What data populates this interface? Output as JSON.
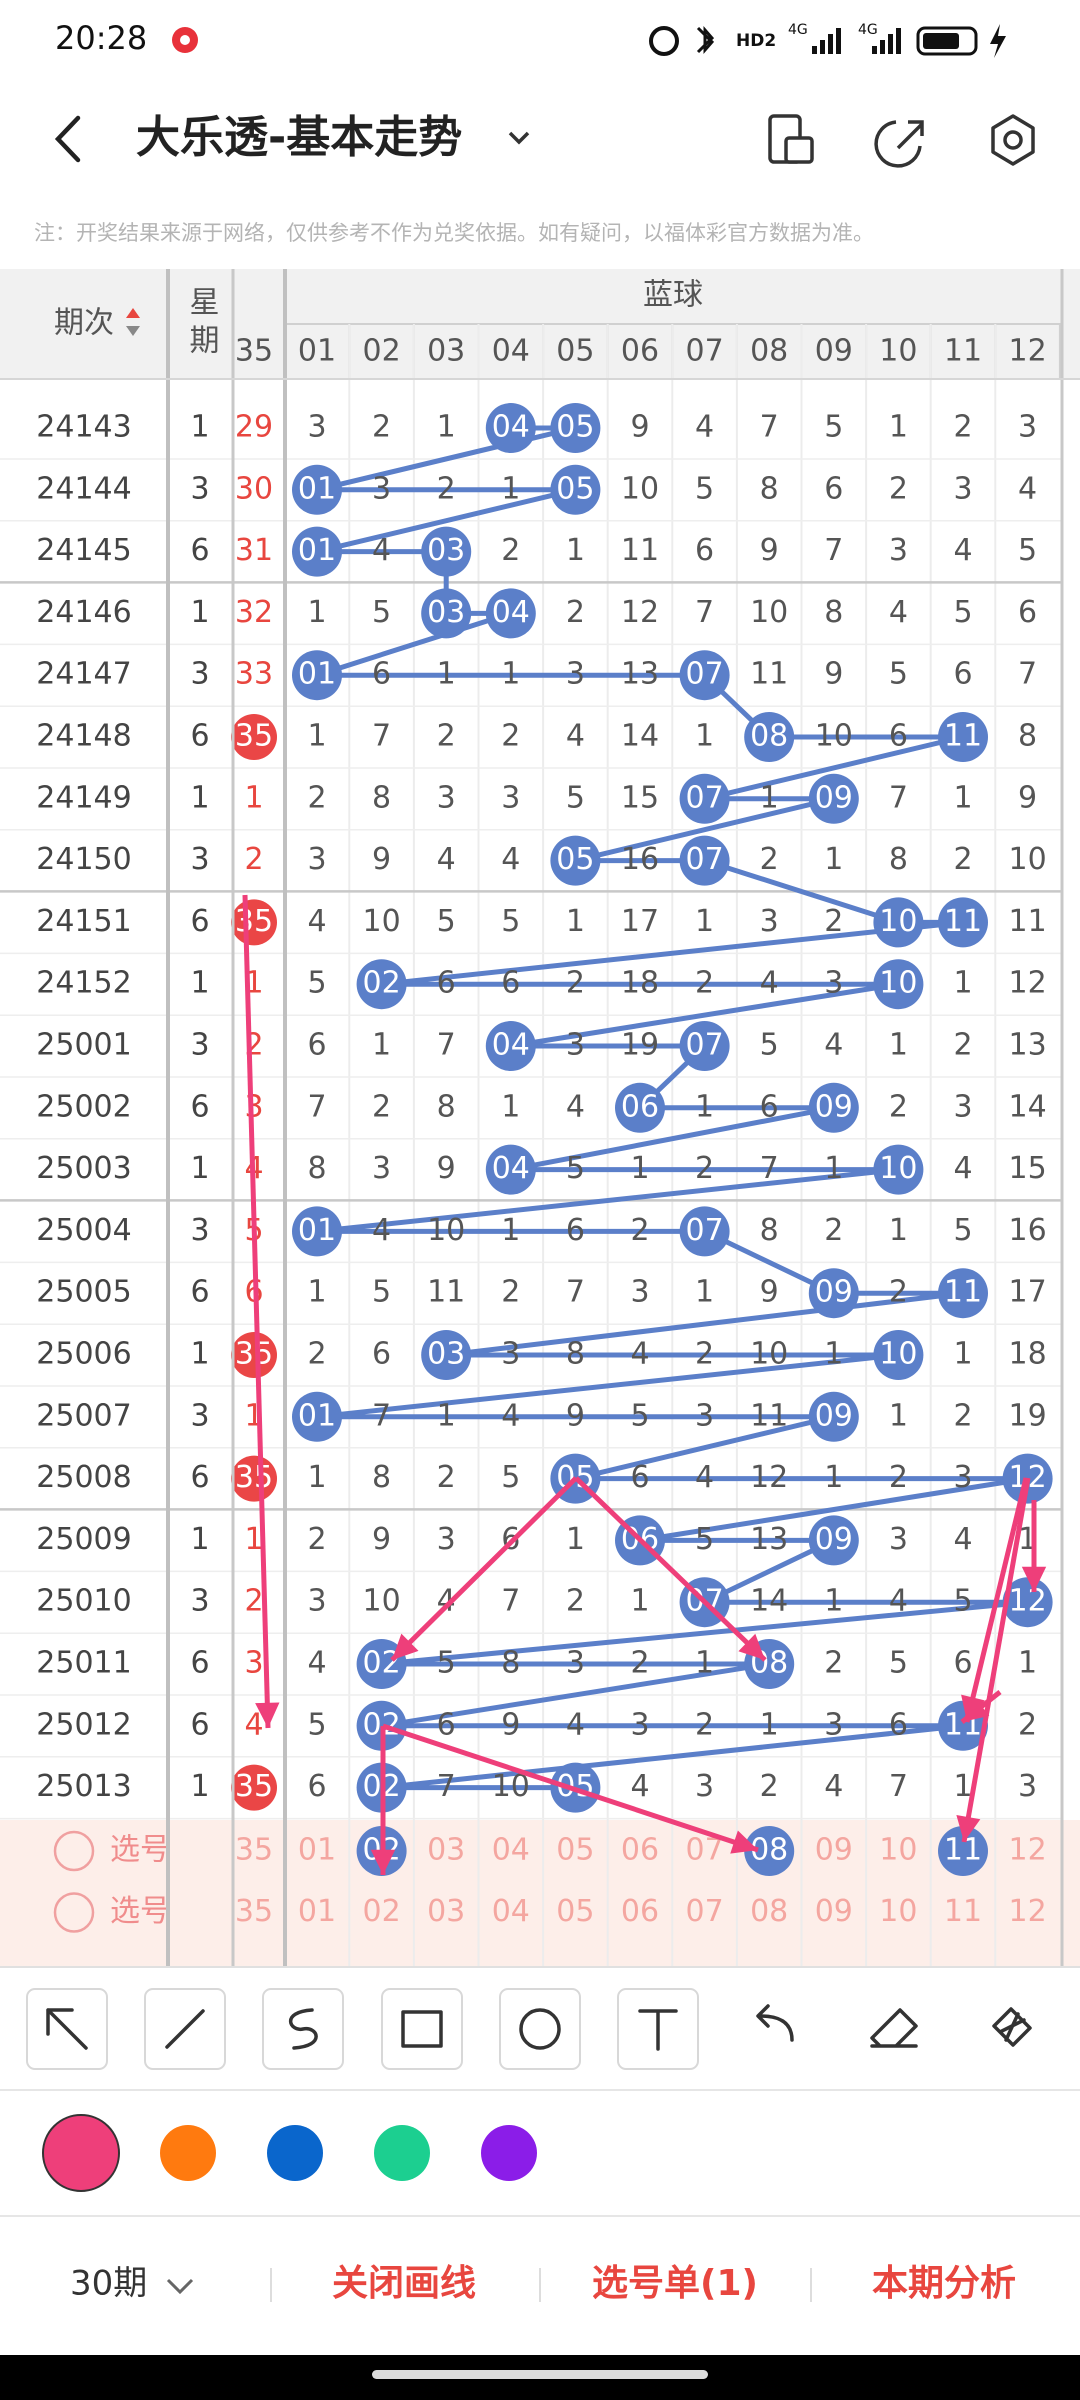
{
  "status_bar": {
    "time": "20:28",
    "hd": "HD2",
    "net1": "4G",
    "net2": "4G"
  },
  "header": {
    "title": "大乐透-基本走势"
  },
  "note": "注：开奖结果来源于网络，仅供参考不作为兑奖依据。如有疑问，以福体彩官方数据为准。",
  "table": {
    "period_header": "期次",
    "weekday_header": "星期",
    "front_header": "35",
    "blue_header": "蓝球",
    "columns": [
      "01",
      "02",
      "03",
      "04",
      "05",
      "06",
      "07",
      "08",
      "09",
      "10",
      "11",
      "12"
    ],
    "rows": [
      {
        "period": "24143",
        "weekday": "1",
        "front": "29",
        "front_ball": false,
        "cells": [
          "3",
          "2",
          "1",
          "04",
          "05",
          "9",
          "4",
          "7",
          "5",
          "1",
          "2",
          "3"
        ],
        "hits": [
          3,
          4
        ]
      },
      {
        "period": "24144",
        "weekday": "3",
        "front": "30",
        "front_ball": false,
        "cells": [
          "01",
          "3",
          "2",
          "1",
          "05",
          "10",
          "5",
          "8",
          "6",
          "2",
          "3",
          "4"
        ],
        "hits": [
          0,
          4
        ]
      },
      {
        "period": "24145",
        "weekday": "6",
        "front": "31",
        "front_ball": false,
        "cells": [
          "01",
          "4",
          "03",
          "2",
          "1",
          "11",
          "6",
          "9",
          "7",
          "3",
          "4",
          "5"
        ],
        "hits": [
          0,
          2
        ]
      },
      {
        "period": "24146",
        "weekday": "1",
        "front": "32",
        "front_ball": false,
        "cells": [
          "1",
          "5",
          "03",
          "04",
          "2",
          "12",
          "7",
          "10",
          "8",
          "4",
          "5",
          "6"
        ],
        "hits": [
          2,
          3
        ]
      },
      {
        "period": "24147",
        "weekday": "3",
        "front": "33",
        "front_ball": false,
        "cells": [
          "01",
          "6",
          "1",
          "1",
          "3",
          "13",
          "07",
          "11",
          "9",
          "5",
          "6",
          "7"
        ],
        "hits": [
          0,
          6
        ]
      },
      {
        "period": "24148",
        "weekday": "6",
        "front": "35",
        "front_ball": true,
        "cells": [
          "1",
          "7",
          "2",
          "2",
          "4",
          "14",
          "1",
          "08",
          "10",
          "6",
          "11",
          "8"
        ],
        "hits": [
          7,
          10
        ]
      },
      {
        "period": "24149",
        "weekday": "1",
        "front": "1",
        "front_ball": false,
        "cells": [
          "2",
          "8",
          "3",
          "3",
          "5",
          "15",
          "07",
          "1",
          "09",
          "7",
          "1",
          "9"
        ],
        "hits": [
          6,
          8
        ]
      },
      {
        "period": "24150",
        "weekday": "3",
        "front": "2",
        "front_ball": false,
        "cells": [
          "3",
          "9",
          "4",
          "4",
          "05",
          "16",
          "07",
          "2",
          "1",
          "8",
          "2",
          "10"
        ],
        "hits": [
          4,
          6
        ]
      },
      {
        "period": "24151",
        "weekday": "6",
        "front": "35",
        "front_ball": true,
        "cells": [
          "4",
          "10",
          "5",
          "5",
          "1",
          "17",
          "1",
          "3",
          "2",
          "10",
          "11",
          "11"
        ],
        "hits": [
          9,
          10
        ]
      },
      {
        "period": "24152",
        "weekday": "1",
        "front": "1",
        "front_ball": false,
        "cells": [
          "5",
          "02",
          "6",
          "6",
          "2",
          "18",
          "2",
          "4",
          "3",
          "10",
          "1",
          "12"
        ],
        "hits": [
          1,
          9
        ]
      },
      {
        "period": "25001",
        "weekday": "3",
        "front": "2",
        "front_ball": false,
        "cells": [
          "6",
          "1",
          "7",
          "04",
          "3",
          "19",
          "07",
          "5",
          "4",
          "1",
          "2",
          "13"
        ],
        "hits": [
          3,
          6
        ]
      },
      {
        "period": "25002",
        "weekday": "6",
        "front": "3",
        "front_ball": false,
        "cells": [
          "7",
          "2",
          "8",
          "1",
          "4",
          "06",
          "1",
          "6",
          "09",
          "2",
          "3",
          "14"
        ],
        "hits": [
          5,
          8
        ]
      },
      {
        "period": "25003",
        "weekday": "1",
        "front": "4",
        "front_ball": false,
        "cells": [
          "8",
          "3",
          "9",
          "04",
          "5",
          "1",
          "2",
          "7",
          "1",
          "10",
          "4",
          "15"
        ],
        "hits": [
          3,
          9
        ]
      },
      {
        "period": "25004",
        "weekday": "3",
        "front": "5",
        "front_ball": false,
        "cells": [
          "01",
          "4",
          "10",
          "1",
          "6",
          "2",
          "07",
          "8",
          "2",
          "1",
          "5",
          "16"
        ],
        "hits": [
          0,
          6
        ]
      },
      {
        "period": "25005",
        "weekday": "6",
        "front": "6",
        "front_ball": false,
        "cells": [
          "1",
          "5",
          "11",
          "2",
          "7",
          "3",
          "1",
          "9",
          "09",
          "2",
          "11",
          "17"
        ],
        "hits": [
          8,
          10
        ]
      },
      {
        "period": "25006",
        "weekday": "1",
        "front": "35",
        "front_ball": true,
        "cells": [
          "2",
          "6",
          "03",
          "3",
          "8",
          "4",
          "2",
          "10",
          "1",
          "10",
          "1",
          "18"
        ],
        "hits": [
          2,
          9
        ]
      },
      {
        "period": "25007",
        "weekday": "3",
        "front": "1",
        "front_ball": false,
        "cells": [
          "01",
          "7",
          "1",
          "4",
          "9",
          "5",
          "3",
          "11",
          "09",
          "1",
          "2",
          "19"
        ],
        "hits": [
          0,
          8
        ]
      },
      {
        "period": "25008",
        "weekday": "6",
        "front": "35",
        "front_ball": true,
        "cells": [
          "1",
          "8",
          "2",
          "5",
          "05",
          "6",
          "4",
          "12",
          "1",
          "2",
          "3",
          "12"
        ],
        "hits": [
          4,
          11
        ]
      },
      {
        "period": "25009",
        "weekday": "1",
        "front": "1",
        "front_ball": false,
        "cells": [
          "2",
          "9",
          "3",
          "6",
          "1",
          "06",
          "5",
          "13",
          "09",
          "3",
          "4",
          "1"
        ],
        "hits": [
          5,
          8
        ]
      },
      {
        "period": "25010",
        "weekday": "3",
        "front": "2",
        "front_ball": false,
        "cells": [
          "3",
          "10",
          "4",
          "7",
          "2",
          "1",
          "07",
          "14",
          "1",
          "4",
          "5",
          "12"
        ],
        "hits": [
          6,
          11
        ]
      },
      {
        "period": "25011",
        "weekday": "6",
        "front": "3",
        "front_ball": false,
        "cells": [
          "4",
          "02",
          "5",
          "8",
          "3",
          "2",
          "1",
          "08",
          "2",
          "5",
          "6",
          "1"
        ],
        "hits": [
          1,
          7
        ]
      },
      {
        "period": "25012",
        "weekday": "6",
        "front": "4",
        "front_ball": false,
        "cells": [
          "5",
          "02",
          "6",
          "9",
          "4",
          "3",
          "2",
          "1",
          "3",
          "6",
          "11",
          "2"
        ],
        "hits": [
          1,
          10
        ]
      },
      {
        "period": "25013",
        "weekday": "1",
        "front": "35",
        "front_ball": true,
        "cells": [
          "6",
          "02",
          "7",
          "10",
          "05",
          "4",
          "3",
          "2",
          "4",
          "7",
          "1",
          "3"
        ],
        "hits": [
          1,
          4
        ]
      }
    ],
    "pick_rows": [
      {
        "label": "选号",
        "front": "35",
        "cells": [
          "01",
          "02",
          "03",
          "04",
          "05",
          "06",
          "07",
          "08",
          "09",
          "10",
          "11",
          "12"
        ],
        "hits": [
          1,
          7,
          10
        ]
      },
      {
        "label": "选号",
        "front": "35",
        "cells": [
          "01",
          "02",
          "03",
          "04",
          "05",
          "06",
          "07",
          "08",
          "09",
          "10",
          "11",
          "12"
        ],
        "hits": []
      }
    ]
  },
  "palette": {
    "colors": [
      "#ee3f7a",
      "#ff7a0f",
      "#0a66cc",
      "#1ccf90",
      "#8b1de8"
    ],
    "selected": 0
  },
  "footer": {
    "period_select": "30期",
    "close_draw": "关闭画线",
    "pick_list": "选号单(1)",
    "analysis": "本期分析"
  }
}
